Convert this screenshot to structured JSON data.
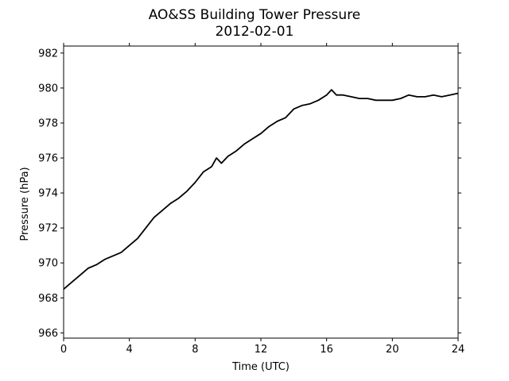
{
  "chart_data": {
    "type": "line",
    "title": "AO&SS Building Tower Pressure",
    "subtitle": "2012-02-01",
    "xlabel": "Time (UTC)",
    "ylabel": "Pressure (hPa)",
    "xlim": [
      0,
      24
    ],
    "ylim": [
      965.7,
      982.4
    ],
    "xticks": [
      0,
      4,
      8,
      12,
      16,
      20,
      24
    ],
    "yticks": [
      966,
      968,
      970,
      972,
      974,
      976,
      978,
      980,
      982
    ],
    "grid": false,
    "legend": "none",
    "series": [
      {
        "color": "#000000",
        "x": [
          0,
          0.5,
          1,
          1.5,
          2,
          2.5,
          3,
          3.5,
          4,
          4.5,
          5,
          5.5,
          6,
          6.5,
          7,
          7.5,
          8,
          8.5,
          9,
          9.3,
          9.6,
          10,
          10.5,
          11,
          11.5,
          12,
          12.5,
          13,
          13.5,
          14,
          14.5,
          15,
          15.5,
          16,
          16.3,
          16.6,
          17,
          17.5,
          18,
          18.5,
          19,
          19.5,
          20,
          20.5,
          21,
          21.5,
          22,
          22.5,
          23,
          23.5,
          24
        ],
        "y": [
          968.5,
          968.9,
          969.3,
          969.7,
          969.9,
          970.2,
          970.4,
          970.6,
          971.0,
          971.4,
          972.0,
          972.6,
          973.0,
          973.4,
          973.7,
          974.1,
          974.6,
          975.2,
          975.5,
          976.0,
          975.7,
          976.1,
          976.4,
          976.8,
          977.1,
          977.4,
          977.8,
          978.1,
          978.3,
          978.8,
          979.0,
          979.1,
          979.3,
          979.6,
          979.9,
          979.6,
          979.6,
          979.5,
          979.4,
          979.4,
          979.3,
          979.3,
          979.3,
          979.4,
          979.6,
          979.5,
          979.5,
          979.6,
          979.5,
          979.6,
          979.7
        ]
      }
    ]
  }
}
